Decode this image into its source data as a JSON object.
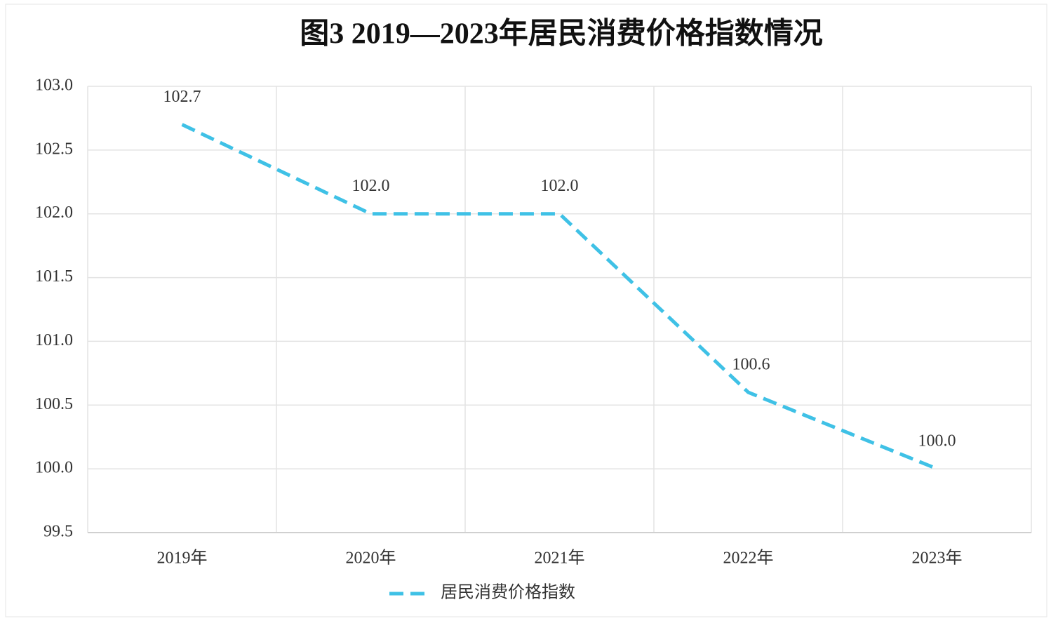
{
  "chart_data": {
    "type": "line",
    "title": "图3   2019—2023年居民消费价格指数情况",
    "categories": [
      "2019年",
      "2020年",
      "2021年",
      "2022年",
      "2023年"
    ],
    "series": [
      {
        "name": "居民消费价格指数",
        "color": "#3fc1e6",
        "values": [
          102.7,
          102.0,
          102.0,
          100.6,
          100.0
        ],
        "value_labels": [
          "102.7",
          "102.0",
          "102.0",
          "100.6",
          "100.0"
        ]
      }
    ],
    "ylim": [
      99.5,
      103.0
    ],
    "yticks": [
      99.5,
      {
        "value": 100.0,
        "label": "100.0"
      },
      100.5,
      {
        "value": 101.0,
        "label": "101.0"
      },
      101.5,
      {
        "value": 102.0,
        "label": "102.0"
      },
      102.5,
      {
        "value": 103.0,
        "label": "103.0"
      }
    ],
    "grid": true,
    "legend": "bottom"
  }
}
